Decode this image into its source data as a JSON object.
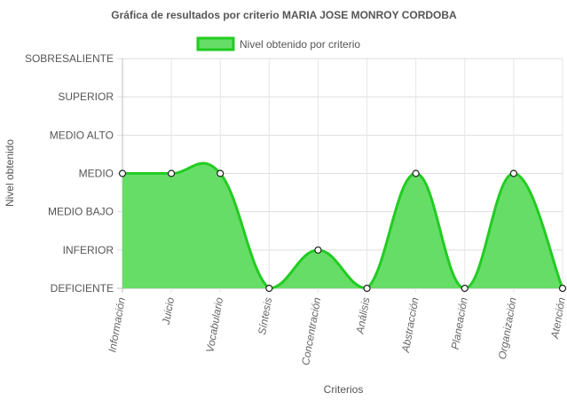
{
  "chart_data": {
    "type": "area",
    "title": "Gráfica de resultados por criterio MARIA JOSE MONROY CORDOBA",
    "xlabel": "Criterios",
    "ylabel": "Nivel obtenido",
    "categories": [
      "Información",
      "Juicio",
      "Vocabulario",
      "Síntesis",
      "Concentración",
      "Análisis",
      "Abstracción",
      "Planeación",
      "Organización",
      "Atención"
    ],
    "y_levels": [
      "DEFICIENTE",
      "INFERIOR",
      "MEDIO BAJO",
      "MEDIO",
      "MEDIO ALTO",
      "SUPERIOR",
      "SOBRESALIENTE"
    ],
    "ylim": [
      0,
      6
    ],
    "series": [
      {
        "name": "Nivel obtenido por criterio",
        "values": [
          3,
          3,
          3,
          0,
          1,
          0,
          3,
          0,
          3,
          0
        ],
        "color": "#22cc22",
        "fill": "#66dd66"
      }
    ],
    "grid": true,
    "legend_position": "top"
  }
}
